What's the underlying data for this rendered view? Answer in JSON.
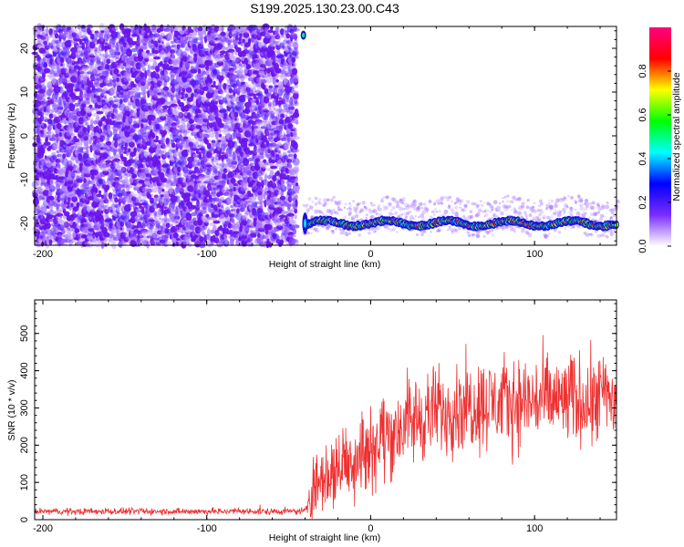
{
  "title": "S199.2025.130.23.00.C43",
  "chart_data": [
    {
      "type": "heatmap",
      "xlabel": "Height of straight line (km)",
      "ylabel": "Frequency (Hz)",
      "xlim": [
        -205,
        150
      ],
      "ylim": [
        -25,
        25
      ],
      "xticks": [
        -200,
        -100,
        0,
        100
      ],
      "yticks": [
        -20,
        -10,
        0,
        10,
        20
      ],
      "colorbar": {
        "label": "Normalized spectral amplitude",
        "range": [
          0,
          1
        ],
        "ticks": [
          "0.0",
          "0.2",
          "0.4",
          "0.6",
          "0.8"
        ],
        "colors": [
          "#ffffff",
          "#7b2cff",
          "#0000ff",
          "#00ffff",
          "#00ff00",
          "#ffff00",
          "#ff0000",
          "#ff0080"
        ]
      },
      "regions": [
        {
          "name": "noise",
          "x_range": [
            -205,
            -45
          ],
          "freq_range": [
            -25,
            25
          ],
          "amplitude_range": [
            0.05,
            0.2
          ]
        },
        {
          "name": "blank",
          "x_range": [
            -45,
            150
          ],
          "freq_range": [
            -15,
            25
          ],
          "amplitude": 0
        }
      ],
      "ridge": {
        "frequency_hz": -20,
        "x_start": -40,
        "x_end": 150,
        "peak_amplitude": 0.95
      },
      "grid": false
    },
    {
      "type": "line",
      "xlabel": "Height of straight line (km)",
      "ylabel": "SNR (10 * v/v)",
      "xlim": [
        -205,
        150
      ],
      "ylim": [
        0,
        590
      ],
      "xticks": [
        -200,
        -100,
        0,
        100
      ],
      "yticks": [
        0,
        100,
        200,
        300,
        400,
        500
      ],
      "series_color": "#ee3030",
      "trend": {
        "x": [
          -205,
          -40,
          -35,
          -20,
          0,
          20,
          40,
          60,
          80,
          100,
          120,
          140,
          150
        ],
        "y": [
          22,
          22,
          90,
          140,
          200,
          255,
          290,
          310,
          315,
          320,
          320,
          330,
          320
        ]
      },
      "noise_amplitude": {
        "x": [
          -205,
          -40,
          -35,
          0,
          50,
          150
        ],
        "y": [
          8,
          8,
          90,
          110,
          110,
          115
        ]
      },
      "grid": false
    }
  ]
}
